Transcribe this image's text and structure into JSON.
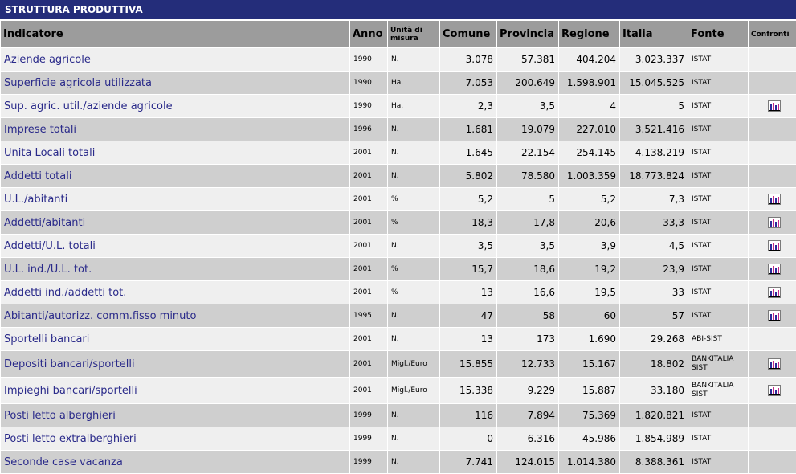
{
  "section_title": "STRUTTURA PRODUTTIVA",
  "headers": {
    "indicatore": "Indicatore",
    "anno": "Anno",
    "unita": "Unità di misura",
    "comune": "Comune",
    "provincia": "Provincia",
    "regione": "Regione",
    "italia": "Italia",
    "fonte": "Fonte",
    "confronti": "Confronti"
  },
  "rows": [
    {
      "indicatore": "Aziende agricole",
      "anno": "1990",
      "unita": "N.",
      "comune": "3.078",
      "provincia": "57.381",
      "regione": "404.204",
      "italia": "3.023.337",
      "fonte": "ISTAT",
      "chart": false
    },
    {
      "indicatore": "Superficie agricola utilizzata",
      "anno": "1990",
      "unita": "Ha.",
      "comune": "7.053",
      "provincia": "200.649",
      "regione": "1.598.901",
      "italia": "15.045.525",
      "fonte": "ISTAT",
      "chart": false
    },
    {
      "indicatore": "Sup. agric. util./aziende agricole",
      "anno": "1990",
      "unita": "Ha.",
      "comune": "2,3",
      "provincia": "3,5",
      "regione": "4",
      "italia": "5",
      "fonte": "ISTAT",
      "chart": true
    },
    {
      "indicatore": "Imprese totali",
      "anno": "1996",
      "unita": "N.",
      "comune": "1.681",
      "provincia": "19.079",
      "regione": "227.010",
      "italia": "3.521.416",
      "fonte": "ISTAT",
      "chart": false
    },
    {
      "indicatore": "Unita Locali totali",
      "anno": "2001",
      "unita": "N.",
      "comune": "1.645",
      "provincia": "22.154",
      "regione": "254.145",
      "italia": "4.138.219",
      "fonte": "ISTAT",
      "chart": false
    },
    {
      "indicatore": "Addetti totali",
      "anno": "2001",
      "unita": "N.",
      "comune": "5.802",
      "provincia": "78.580",
      "regione": "1.003.359",
      "italia": "18.773.824",
      "fonte": "ISTAT",
      "chart": false
    },
    {
      "indicatore": "U.L./abitanti",
      "anno": "2001",
      "unita": "%",
      "comune": "5,2",
      "provincia": "5",
      "regione": "5,2",
      "italia": "7,3",
      "fonte": "ISTAT",
      "chart": true
    },
    {
      "indicatore": "Addetti/abitanti",
      "anno": "2001",
      "unita": "%",
      "comune": "18,3",
      "provincia": "17,8",
      "regione": "20,6",
      "italia": "33,3",
      "fonte": "ISTAT",
      "chart": true
    },
    {
      "indicatore": "Addetti/U.L. totali",
      "anno": "2001",
      "unita": "N.",
      "comune": "3,5",
      "provincia": "3,5",
      "regione": "3,9",
      "italia": "4,5",
      "fonte": "ISTAT",
      "chart": true
    },
    {
      "indicatore": "U.L. ind./U.L. tot.",
      "anno": "2001",
      "unita": "%",
      "comune": "15,7",
      "provincia": "18,6",
      "regione": "19,2",
      "italia": "23,9",
      "fonte": "ISTAT",
      "chart": true
    },
    {
      "indicatore": "Addetti ind./addetti tot.",
      "anno": "2001",
      "unita": "%",
      "comune": "13",
      "provincia": "16,6",
      "regione": "19,5",
      "italia": "33",
      "fonte": "ISTAT",
      "chart": true
    },
    {
      "indicatore": "Abitanti/autorizz. comm.fisso minuto",
      "anno": "1995",
      "unita": "N.",
      "comune": "47",
      "provincia": "58",
      "regione": "60",
      "italia": "57",
      "fonte": "ISTAT",
      "chart": true
    },
    {
      "indicatore": "Sportelli bancari",
      "anno": "2001",
      "unita": "N.",
      "comune": "13",
      "provincia": "173",
      "regione": "1.690",
      "italia": "29.268",
      "fonte": "ABI-SIST",
      "chart": false
    },
    {
      "indicatore": "Depositi bancari/sportelli",
      "anno": "2001",
      "unita": "Migl./Euro",
      "comune": "15.855",
      "provincia": "12.733",
      "regione": "15.167",
      "italia": "18.802",
      "fonte": "BANKITALIA SIST",
      "chart": true,
      "tall": true
    },
    {
      "indicatore": "Impieghi bancari/sportelli",
      "anno": "2001",
      "unita": "Migl./Euro",
      "comune": "15.338",
      "provincia": "9.229",
      "regione": "15.887",
      "italia": "33.180",
      "fonte": "BANKITALIA SIST",
      "chart": true,
      "tall": true
    },
    {
      "indicatore": "Posti letto alberghieri",
      "anno": "1999",
      "unita": "N.",
      "comune": "116",
      "provincia": "7.894",
      "regione": "75.369",
      "italia": "1.820.821",
      "fonte": "ISTAT",
      "chart": false
    },
    {
      "indicatore": "Posti letto extralberghieri",
      "anno": "1999",
      "unita": "N.",
      "comune": "0",
      "provincia": "6.316",
      "regione": "45.986",
      "italia": "1.854.989",
      "fonte": "ISTAT",
      "chart": false
    },
    {
      "indicatore": "Seconde case vacanza",
      "anno": "1999",
      "unita": "N.",
      "comune": "7.741",
      "provincia": "124.015",
      "regione": "1.014.380",
      "italia": "8.388.361",
      "fonte": "ISTAT",
      "chart": false
    }
  ],
  "icons": {
    "chart": "bar-chart-icon"
  },
  "colors": {
    "title_bg": "#242d7a",
    "header_bg": "#9c9c9c",
    "row_light": "#efefef",
    "row_dark": "#cfcfcf",
    "link": "#2a2a8a"
  }
}
